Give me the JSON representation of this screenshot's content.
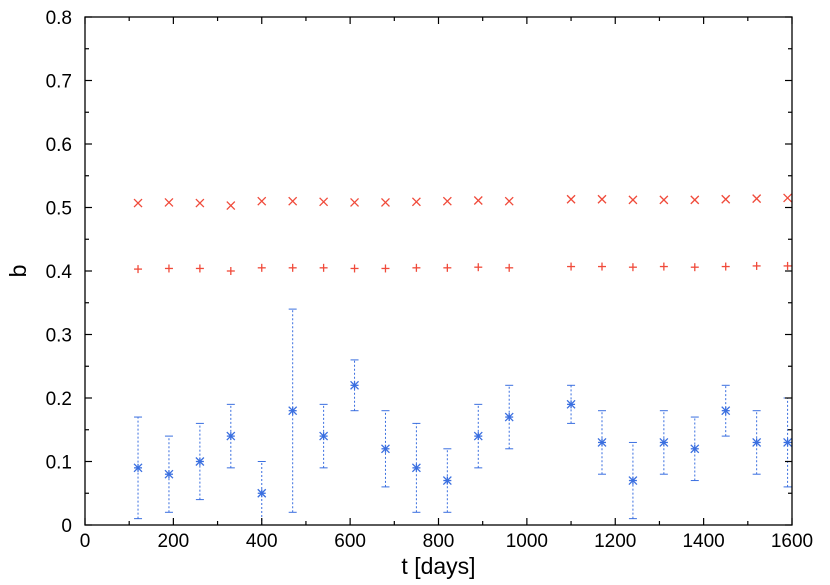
{
  "chart_data": {
    "type": "scatter",
    "title": "",
    "xlabel": "t [days]",
    "ylabel": "b",
    "xlim": [
      0,
      1600
    ],
    "ylim": [
      0,
      0.8
    ],
    "xticks": [
      0,
      200,
      400,
      600,
      800,
      1000,
      1200,
      1400,
      1600
    ],
    "yticks": [
      0,
      0.1,
      0.2,
      0.3,
      0.4,
      0.5,
      0.6,
      0.7,
      0.8
    ],
    "xtick_labels": [
      "0",
      "200",
      "400",
      "600",
      "800",
      "1000",
      "1200",
      "1400",
      "1600"
    ],
    "ytick_labels": [
      "0",
      "0.1",
      "0.2",
      "0.3",
      "0.4",
      "0.5",
      "0.6",
      "0.7",
      "0.8"
    ],
    "grid": false,
    "series": [
      {
        "marker": "x",
        "color": "#f04a3a",
        "x": [
          120,
          190,
          260,
          330,
          400,
          470,
          540,
          610,
          680,
          750,
          820,
          890,
          960,
          1100,
          1170,
          1240,
          1310,
          1380,
          1450,
          1520,
          1590
        ],
        "y": [
          0.507,
          0.508,
          0.507,
          0.503,
          0.51,
          0.51,
          0.509,
          0.508,
          0.508,
          0.509,
          0.51,
          0.511,
          0.51,
          0.513,
          0.513,
          0.512,
          0.512,
          0.512,
          0.513,
          0.514,
          0.515
        ]
      },
      {
        "marker": "+",
        "color": "#f04a3a",
        "x": [
          120,
          190,
          260,
          330,
          400,
          470,
          540,
          610,
          680,
          750,
          820,
          890,
          960,
          1100,
          1170,
          1240,
          1310,
          1380,
          1450,
          1520,
          1590
        ],
        "y": [
          0.403,
          0.404,
          0.404,
          0.4,
          0.405,
          0.405,
          0.405,
          0.404,
          0.404,
          0.405,
          0.405,
          0.406,
          0.405,
          0.407,
          0.407,
          0.406,
          0.407,
          0.406,
          0.407,
          0.408,
          0.408
        ]
      },
      {
        "marker": "*",
        "color": "#3a6fe0",
        "x": [
          120,
          190,
          260,
          330,
          400,
          470,
          540,
          610,
          680,
          750,
          820,
          890,
          960,
          1100,
          1170,
          1240,
          1310,
          1380,
          1450,
          1520,
          1590
        ],
        "y": [
          0.09,
          0.08,
          0.1,
          0.14,
          0.05,
          0.18,
          0.14,
          0.22,
          0.12,
          0.09,
          0.07,
          0.14,
          0.17,
          0.19,
          0.13,
          0.07,
          0.13,
          0.12,
          0.18,
          0.13,
          0.13
        ],
        "y_low": [
          0.01,
          0.02,
          0.04,
          0.09,
          0.0,
          0.02,
          0.09,
          0.18,
          0.06,
          0.02,
          0.02,
          0.09,
          0.12,
          0.16,
          0.08,
          0.01,
          0.08,
          0.07,
          0.14,
          0.08,
          0.06
        ],
        "y_high": [
          0.17,
          0.14,
          0.16,
          0.19,
          0.1,
          0.34,
          0.19,
          0.26,
          0.18,
          0.16,
          0.12,
          0.19,
          0.22,
          0.22,
          0.18,
          0.13,
          0.18,
          0.17,
          0.22,
          0.18,
          0.2
        ]
      }
    ]
  }
}
